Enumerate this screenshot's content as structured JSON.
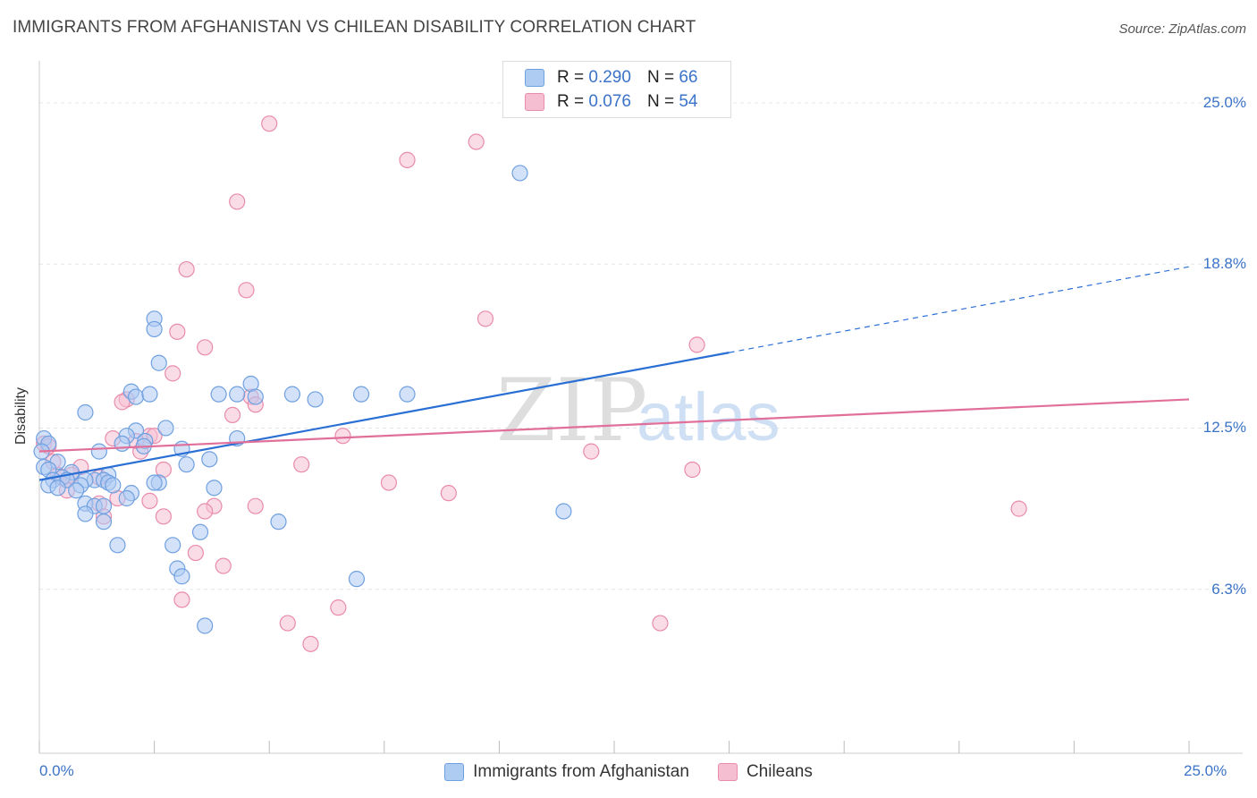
{
  "title": "IMMIGRANTS FROM AFGHANISTAN VS CHILEAN DISABILITY CORRELATION CHART",
  "source": "Source: ZipAtlas.com",
  "watermark": {
    "zip": "ZIP",
    "atlas": "atlas"
  },
  "colors": {
    "blue": "#6fa0e0",
    "blue_fill": "#aecbf2",
    "blue_line": "#2a6fd4",
    "pink": "#e98bab",
    "pink_fill": "#f6bfd1",
    "pink_line": "#e0709a",
    "grid": "#e6e6e6",
    "axis_text": "#3b73c8"
  },
  "legend": {
    "rows": [
      {
        "r_label": "R =",
        "r_value": "0.290",
        "n_label": "N =",
        "n_value": "66"
      },
      {
        "r_label": "R =",
        "r_value": "0.076",
        "n_label": "N =",
        "n_value": "54"
      }
    ]
  },
  "bottom_legend": {
    "series1": "Immigrants from Afghanistan",
    "series2": "Chileans"
  },
  "chart_data": {
    "type": "scatter",
    "title": "IMMIGRANTS FROM AFGHANISTAN VS CHILEAN DISABILITY CORRELATION CHART",
    "xlabel": "",
    "ylabel": "Disability",
    "xlim": [
      0,
      25
    ],
    "ylim": [
      0,
      26.2
    ],
    "x_tick_labels": {
      "min": "0.0%",
      "max": "25.0%"
    },
    "y_ticks": [
      {
        "value": 6.3,
        "label": "6.3%"
      },
      {
        "value": 12.5,
        "label": "12.5%"
      },
      {
        "value": 18.8,
        "label": "18.8%"
      },
      {
        "value": 25.0,
        "label": "25.0%"
      }
    ],
    "series": [
      {
        "name": "Immigrants from Afghanistan",
        "R": 0.29,
        "N": 66,
        "trend": {
          "x0": 0,
          "y0": 10.5,
          "x1": 15,
          "y1": 15.4,
          "x_ext": 25,
          "y_ext": 18.7
        },
        "points": [
          [
            10.45,
            22.3
          ],
          [
            8.0,
            13.8
          ],
          [
            7.0,
            13.8
          ],
          [
            6.0,
            13.6
          ],
          [
            5.5,
            13.8
          ],
          [
            4.6,
            14.2
          ],
          [
            4.7,
            13.7
          ],
          [
            4.3,
            13.8
          ],
          [
            3.9,
            13.8
          ],
          [
            2.5,
            16.7
          ],
          [
            2.5,
            16.3
          ],
          [
            2.6,
            15.0
          ],
          [
            2.0,
            13.9
          ],
          [
            2.1,
            13.7
          ],
          [
            2.4,
            13.8
          ],
          [
            1.0,
            13.1
          ],
          [
            2.75,
            12.5
          ],
          [
            2.1,
            12.4
          ],
          [
            1.9,
            12.2
          ],
          [
            2.3,
            12.0
          ],
          [
            1.8,
            11.9
          ],
          [
            2.27,
            11.8
          ],
          [
            3.1,
            11.7
          ],
          [
            1.3,
            11.6
          ],
          [
            4.3,
            12.1
          ],
          [
            3.7,
            11.3
          ],
          [
            3.2,
            11.1
          ],
          [
            0.1,
            12.1
          ],
          [
            0.2,
            11.9
          ],
          [
            0.05,
            11.6
          ],
          [
            0.4,
            11.2
          ],
          [
            0.1,
            11.0
          ],
          [
            0.2,
            10.9
          ],
          [
            0.7,
            10.8
          ],
          [
            1.5,
            10.7
          ],
          [
            0.5,
            10.6
          ],
          [
            1.2,
            10.5
          ],
          [
            0.6,
            10.5
          ],
          [
            1.0,
            10.5
          ],
          [
            1.4,
            10.5
          ],
          [
            1.5,
            10.4
          ],
          [
            0.9,
            10.3
          ],
          [
            0.3,
            10.5
          ],
          [
            0.2,
            10.3
          ],
          [
            0.4,
            10.2
          ],
          [
            0.8,
            10.1
          ],
          [
            1.6,
            10.3
          ],
          [
            2.6,
            10.4
          ],
          [
            3.8,
            10.2
          ],
          [
            2.0,
            10.0
          ],
          [
            1.9,
            9.8
          ],
          [
            1.0,
            9.6
          ],
          [
            1.2,
            9.5
          ],
          [
            1.4,
            9.5
          ],
          [
            1.0,
            9.2
          ],
          [
            1.4,
            8.9
          ],
          [
            5.2,
            8.9
          ],
          [
            11.4,
            9.3
          ],
          [
            3.5,
            8.5
          ],
          [
            1.7,
            8.0
          ],
          [
            2.9,
            8.0
          ],
          [
            3.0,
            7.1
          ],
          [
            3.1,
            6.8
          ],
          [
            6.9,
            6.7
          ],
          [
            3.6,
            4.9
          ],
          [
            2.5,
            10.4
          ]
        ]
      },
      {
        "name": "Chileans",
        "R": 0.076,
        "N": 54,
        "trend": {
          "x0": 0,
          "y0": 11.6,
          "x1": 25,
          "y1": 13.6
        },
        "points": [
          [
            5.0,
            24.2
          ],
          [
            9.5,
            23.5
          ],
          [
            8.0,
            22.8
          ],
          [
            4.3,
            21.2
          ],
          [
            3.2,
            18.6
          ],
          [
            4.5,
            17.8
          ],
          [
            9.7,
            16.7
          ],
          [
            3.0,
            16.2
          ],
          [
            14.3,
            15.7
          ],
          [
            3.6,
            15.6
          ],
          [
            2.9,
            14.6
          ],
          [
            4.6,
            13.7
          ],
          [
            4.7,
            13.4
          ],
          [
            1.9,
            13.6
          ],
          [
            1.8,
            13.5
          ],
          [
            4.2,
            13.0
          ],
          [
            2.4,
            12.2
          ],
          [
            2.5,
            12.2
          ],
          [
            1.6,
            12.1
          ],
          [
            2.1,
            12.0
          ],
          [
            0.1,
            11.9
          ],
          [
            6.6,
            12.2
          ],
          [
            0.2,
            11.8
          ],
          [
            2.2,
            11.6
          ],
          [
            12.0,
            11.6
          ],
          [
            0.3,
            11.2
          ],
          [
            5.7,
            11.1
          ],
          [
            0.9,
            11.0
          ],
          [
            14.2,
            10.9
          ],
          [
            2.7,
            10.9
          ],
          [
            0.7,
            10.7
          ],
          [
            0.4,
            10.7
          ],
          [
            0.5,
            10.6
          ],
          [
            1.3,
            10.6
          ],
          [
            0.6,
            10.5
          ],
          [
            7.6,
            10.4
          ],
          [
            0.6,
            10.1
          ],
          [
            8.9,
            10.0
          ],
          [
            1.7,
            9.8
          ],
          [
            2.4,
            9.7
          ],
          [
            1.3,
            9.6
          ],
          [
            3.8,
            9.5
          ],
          [
            4.7,
            9.5
          ],
          [
            3.6,
            9.3
          ],
          [
            21.3,
            9.4
          ],
          [
            2.7,
            9.1
          ],
          [
            1.4,
            9.1
          ],
          [
            3.4,
            7.7
          ],
          [
            4.0,
            7.2
          ],
          [
            3.1,
            5.9
          ],
          [
            6.5,
            5.6
          ],
          [
            5.4,
            5.0
          ],
          [
            13.5,
            5.0
          ],
          [
            5.9,
            4.2
          ]
        ]
      }
    ]
  }
}
